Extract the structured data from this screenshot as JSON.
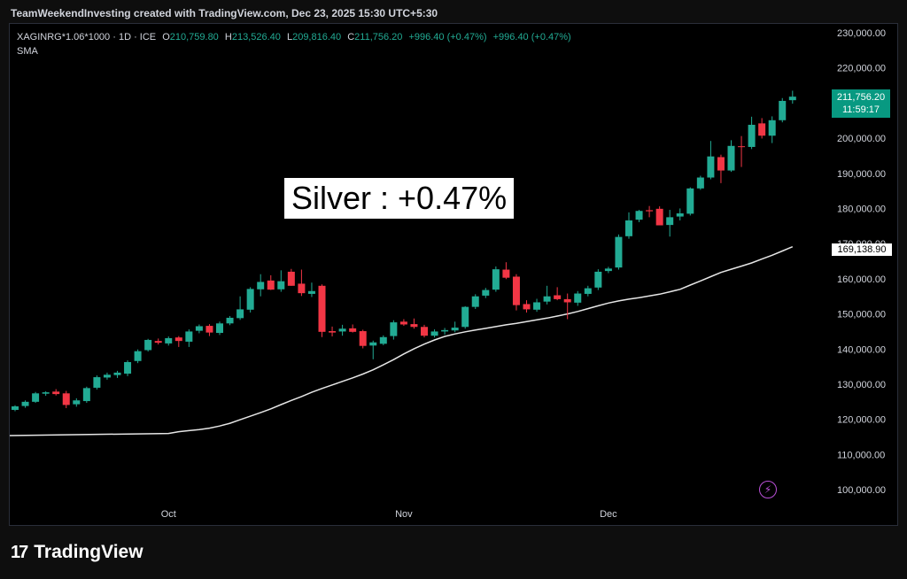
{
  "attribution": "TeamWeekendInvesting created with TradingView.com, Dec 23, 2025 15:30 UTC+5:30",
  "legend": {
    "symbol": "XAGINRG*1.06*1000 · 1D · ICE",
    "o_label": "O",
    "o_value": "210,759.80",
    "h_label": "H",
    "h_value": "213,526.40",
    "l_label": "L",
    "l_value": "209,816.40",
    "c_label": "C",
    "c_value": "211,756.20",
    "change1": "+996.40 (+0.47%)",
    "change2": "+996.40 (+0.47%)",
    "indicator": "SMA"
  },
  "annotation": "Silver : +0.47%",
  "last_price": {
    "value": "211,756.20",
    "countdown": "11:59:17"
  },
  "sma_value": "169,138.90",
  "brand": {
    "logo_text": "17",
    "name": "TradingView"
  },
  "colors": {
    "up": "#22ab94",
    "down": "#f23645",
    "sma": "#e6e6e6",
    "axis_text": "#d1d4dc"
  },
  "chart_data": {
    "type": "candlestick",
    "title": "",
    "y_ticks": [
      100000,
      110000,
      120000,
      130000,
      140000,
      150000,
      160000,
      170000,
      180000,
      190000,
      200000,
      210000,
      220000,
      230000
    ],
    "y_tick_labels": [
      "100,000.00",
      "110,000.00",
      "120,000.00",
      "130,000.00",
      "140,000.00",
      "150,000.00",
      "160,000.00",
      "170,000.00",
      "180,000.00",
      "190,000.00",
      "200,000.00",
      "210,000.00",
      "220,000.00",
      "230,000.00"
    ],
    "ylim": [
      96500,
      232500
    ],
    "x_ticks": [
      {
        "label": "Oct",
        "index": 15
      },
      {
        "label": "Nov",
        "index": 38
      },
      {
        "label": "Dec",
        "index": 58
      }
    ],
    "candles": [
      {
        "o": 122700,
        "h": 124000,
        "l": 122300,
        "c": 123700
      },
      {
        "o": 123800,
        "h": 125400,
        "l": 123300,
        "c": 125000
      },
      {
        "o": 125000,
        "h": 127800,
        "l": 124700,
        "c": 127400
      },
      {
        "o": 127300,
        "h": 128000,
        "l": 126700,
        "c": 127700
      },
      {
        "o": 127900,
        "h": 128600,
        "l": 126800,
        "c": 127200
      },
      {
        "o": 127400,
        "h": 128100,
        "l": 123200,
        "c": 124100
      },
      {
        "o": 124300,
        "h": 126000,
        "l": 123600,
        "c": 125400
      },
      {
        "o": 125200,
        "h": 129300,
        "l": 124700,
        "c": 128900
      },
      {
        "o": 129000,
        "h": 132500,
        "l": 128500,
        "c": 132000
      },
      {
        "o": 131900,
        "h": 133300,
        "l": 131300,
        "c": 132700
      },
      {
        "o": 132600,
        "h": 133800,
        "l": 131800,
        "c": 133300
      },
      {
        "o": 133000,
        "h": 136800,
        "l": 132300,
        "c": 136300
      },
      {
        "o": 136600,
        "h": 139900,
        "l": 136000,
        "c": 139400
      },
      {
        "o": 139700,
        "h": 142900,
        "l": 139300,
        "c": 142600
      },
      {
        "o": 142300,
        "h": 143000,
        "l": 141300,
        "c": 141800
      },
      {
        "o": 141600,
        "h": 143600,
        "l": 141000,
        "c": 143100
      },
      {
        "o": 143300,
        "h": 143700,
        "l": 140600,
        "c": 142300
      },
      {
        "o": 142100,
        "h": 145600,
        "l": 140600,
        "c": 145000
      },
      {
        "o": 145200,
        "h": 147000,
        "l": 144500,
        "c": 146500
      },
      {
        "o": 146600,
        "h": 147100,
        "l": 143700,
        "c": 144700
      },
      {
        "o": 144600,
        "h": 147800,
        "l": 144000,
        "c": 147300
      },
      {
        "o": 147300,
        "h": 149400,
        "l": 146800,
        "c": 148900
      },
      {
        "o": 148800,
        "h": 155000,
        "l": 148300,
        "c": 151300
      },
      {
        "o": 151200,
        "h": 157600,
        "l": 150400,
        "c": 157100
      },
      {
        "o": 157000,
        "h": 161300,
        "l": 155000,
        "c": 159100
      },
      {
        "o": 159500,
        "h": 161000,
        "l": 156800,
        "c": 156900
      },
      {
        "o": 157000,
        "h": 162400,
        "l": 156300,
        "c": 159300
      },
      {
        "o": 162000,
        "h": 162800,
        "l": 158000,
        "c": 158000
      },
      {
        "o": 158600,
        "h": 162600,
        "l": 155100,
        "c": 155900
      },
      {
        "o": 155700,
        "h": 158900,
        "l": 154800,
        "c": 156500
      },
      {
        "o": 158000,
        "h": 158400,
        "l": 143400,
        "c": 144900
      },
      {
        "o": 145100,
        "h": 146400,
        "l": 143600,
        "c": 144700
      },
      {
        "o": 145000,
        "h": 146900,
        "l": 143800,
        "c": 145800
      },
      {
        "o": 145900,
        "h": 147000,
        "l": 144700,
        "c": 144900
      },
      {
        "o": 145100,
        "h": 145500,
        "l": 140200,
        "c": 140900
      },
      {
        "o": 141000,
        "h": 142400,
        "l": 137100,
        "c": 141900
      },
      {
        "o": 141500,
        "h": 143900,
        "l": 141100,
        "c": 143400
      },
      {
        "o": 143700,
        "h": 148200,
        "l": 142700,
        "c": 147600
      },
      {
        "o": 147800,
        "h": 148500,
        "l": 146600,
        "c": 147000
      },
      {
        "o": 147100,
        "h": 148700,
        "l": 145800,
        "c": 146300
      },
      {
        "o": 146300,
        "h": 146900,
        "l": 143300,
        "c": 143800
      },
      {
        "o": 143800,
        "h": 145600,
        "l": 143300,
        "c": 145000
      },
      {
        "o": 145000,
        "h": 146000,
        "l": 144100,
        "c": 145400
      },
      {
        "o": 145300,
        "h": 147800,
        "l": 144800,
        "c": 146100
      },
      {
        "o": 146300,
        "h": 152200,
        "l": 145800,
        "c": 152000
      },
      {
        "o": 152000,
        "h": 155600,
        "l": 151400,
        "c": 155000
      },
      {
        "o": 155200,
        "h": 157400,
        "l": 154500,
        "c": 156800
      },
      {
        "o": 156900,
        "h": 163500,
        "l": 156300,
        "c": 162700
      },
      {
        "o": 162600,
        "h": 164700,
        "l": 159900,
        "c": 160300
      },
      {
        "o": 160600,
        "h": 161300,
        "l": 151000,
        "c": 152500
      },
      {
        "o": 152800,
        "h": 153900,
        "l": 150400,
        "c": 151300
      },
      {
        "o": 151200,
        "h": 154300,
        "l": 150600,
        "c": 153300
      },
      {
        "o": 153500,
        "h": 158000,
        "l": 152700,
        "c": 155000
      },
      {
        "o": 155300,
        "h": 157600,
        "l": 153900,
        "c": 154200
      },
      {
        "o": 154200,
        "h": 155800,
        "l": 148500,
        "c": 153300
      },
      {
        "o": 153200,
        "h": 156500,
        "l": 152300,
        "c": 155800
      },
      {
        "o": 155700,
        "h": 158000,
        "l": 155000,
        "c": 157300
      },
      {
        "o": 157500,
        "h": 162700,
        "l": 156800,
        "c": 162000
      },
      {
        "o": 162200,
        "h": 163400,
        "l": 161600,
        "c": 162900
      },
      {
        "o": 163200,
        "h": 172600,
        "l": 162600,
        "c": 171900
      },
      {
        "o": 172100,
        "h": 178900,
        "l": 171400,
        "c": 176600
      },
      {
        "o": 176800,
        "h": 179600,
        "l": 176100,
        "c": 179300
      },
      {
        "o": 179500,
        "h": 180700,
        "l": 177500,
        "c": 179200
      },
      {
        "o": 179900,
        "h": 180600,
        "l": 175800,
        "c": 175200
      },
      {
        "o": 175300,
        "h": 179600,
        "l": 172000,
        "c": 177500
      },
      {
        "o": 177700,
        "h": 180000,
        "l": 176600,
        "c": 178600
      },
      {
        "o": 178500,
        "h": 186000,
        "l": 178000,
        "c": 185700
      },
      {
        "o": 185700,
        "h": 189300,
        "l": 185300,
        "c": 188800
      },
      {
        "o": 188800,
        "h": 199200,
        "l": 188300,
        "c": 194800
      },
      {
        "o": 194600,
        "h": 195300,
        "l": 187200,
        "c": 190800
      },
      {
        "o": 190800,
        "h": 199400,
        "l": 190400,
        "c": 197800
      },
      {
        "o": 197700,
        "h": 200600,
        "l": 191800,
        "c": 197500
      },
      {
        "o": 197500,
        "h": 206100,
        "l": 196900,
        "c": 203800
      },
      {
        "o": 204200,
        "h": 205700,
        "l": 199900,
        "c": 200700
      },
      {
        "o": 200700,
        "h": 206200,
        "l": 198600,
        "c": 205100
      },
      {
        "o": 205100,
        "h": 211400,
        "l": 204500,
        "c": 210600
      },
      {
        "o": 210800,
        "h": 213500,
        "l": 209800,
        "c": 211800
      }
    ],
    "sma": [
      115400,
      116000,
      116500,
      116800,
      117100,
      117500,
      118100,
      118900,
      119900,
      120900,
      121900,
      123000,
      124200,
      125400,
      126500,
      127700,
      128800,
      129800,
      130800,
      131800,
      132900,
      134100,
      135500,
      137000,
      138600,
      140100,
      141400,
      142600,
      143600,
      144300,
      144900,
      145400,
      145900,
      146400,
      146900,
      147300,
      147800,
      148300,
      148800,
      149400,
      150000,
      150700,
      151500,
      152300,
      153100,
      153700,
      154200,
      154600,
      155100,
      155600,
      156300,
      157000,
      158200,
      159400,
      160600,
      161800,
      162700,
      163600,
      164500,
      165600,
      166700,
      167900,
      169100
    ]
  }
}
